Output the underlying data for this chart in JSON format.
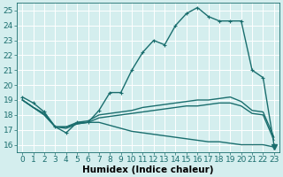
{
  "xlabel": "Humidex (Indice chaleur)",
  "xlim": [
    -0.5,
    23.5
  ],
  "ylim": [
    15.5,
    25.5
  ],
  "xticks": [
    0,
    1,
    2,
    3,
    4,
    5,
    6,
    7,
    8,
    9,
    10,
    11,
    12,
    13,
    14,
    15,
    16,
    17,
    18,
    19,
    20,
    21,
    22,
    23
  ],
  "yticks": [
    16,
    17,
    18,
    19,
    20,
    21,
    22,
    23,
    24,
    25
  ],
  "bg_color": "#d4eeee",
  "grid_color": "#b8d8d8",
  "line_color": "#1a6e6e",
  "line_width": 1.0,
  "series": [
    [
      19.2,
      18.8,
      18.2,
      17.2,
      16.8,
      17.5,
      17.5,
      18.3,
      19.5,
      19.5,
      21.0,
      22.2,
      23.0,
      22.7,
      24.0,
      24.8,
      25.2,
      24.6,
      24.3,
      24.3,
      24.3,
      21.0,
      20.5,
      16.0
    ],
    [
      19.0,
      18.5,
      18.1,
      17.2,
      17.2,
      17.5,
      17.6,
      18.0,
      18.1,
      18.2,
      18.3,
      18.5,
      18.6,
      18.7,
      18.8,
      18.9,
      19.0,
      19.0,
      19.1,
      19.2,
      18.9,
      18.3,
      18.2,
      16.5
    ],
    [
      19.0,
      18.5,
      18.0,
      17.2,
      17.2,
      17.4,
      17.5,
      17.8,
      17.9,
      18.0,
      18.1,
      18.2,
      18.3,
      18.4,
      18.5,
      18.6,
      18.6,
      18.7,
      18.8,
      18.8,
      18.6,
      18.1,
      18.0,
      16.3
    ],
    [
      19.0,
      18.5,
      18.0,
      17.2,
      17.1,
      17.4,
      17.5,
      17.5,
      17.3,
      17.1,
      16.9,
      16.8,
      16.7,
      16.6,
      16.5,
      16.4,
      16.3,
      16.2,
      16.2,
      16.1,
      16.0,
      16.0,
      16.0,
      15.85
    ]
  ],
  "fontsize": 6.5,
  "xlabel_fontsize": 7.5
}
